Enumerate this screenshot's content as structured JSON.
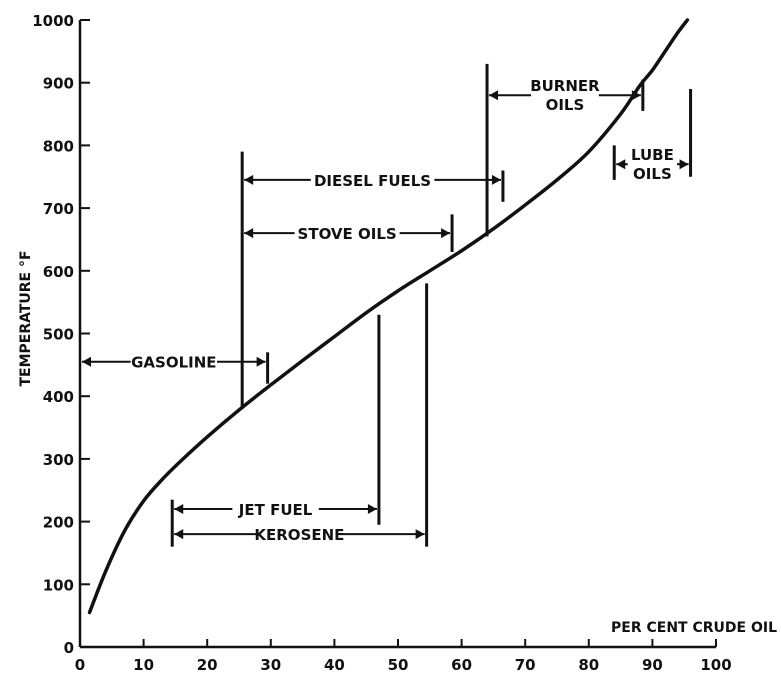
{
  "chart_data": {
    "type": "line",
    "title": "",
    "xlabel": "PER CENT CRUDE OIL",
    "ylabel": "TEMPERATURE °F",
    "xlim": [
      0,
      100
    ],
    "ylim": [
      0,
      1000
    ],
    "x_ticks": [
      "0",
      "10",
      "20",
      "30",
      "40",
      "50",
      "60",
      "70",
      "80",
      "90",
      "100"
    ],
    "y_ticks": [
      "0",
      "100",
      "200",
      "300",
      "400",
      "500",
      "600",
      "700",
      "800",
      "900",
      "1000"
    ],
    "grid": false,
    "legend": "none",
    "series": [
      {
        "x": [
          1.5,
          4,
          7,
          10,
          13,
          16,
          20,
          25,
          30,
          35,
          40,
          45,
          50,
          55,
          60,
          65,
          70,
          75,
          80,
          85,
          88,
          90,
          92,
          94,
          95.5
        ],
        "y": [
          55,
          120,
          185,
          233,
          268,
          298,
          335,
          378,
          418,
          457,
          495,
          533,
          568,
          600,
          632,
          667,
          705,
          745,
          790,
          850,
          895,
          920,
          950,
          980,
          1000
        ]
      }
    ],
    "ranges": [
      {
        "label": "GASOLINE",
        "x_start": 0,
        "x_end": 29.5,
        "y": 455
      },
      {
        "label": "JET FUEL",
        "x_start": 14.5,
        "x_end": 47,
        "y": 220
      },
      {
        "label": "KEROSENE",
        "x_start": 14.5,
        "x_end": 54.5,
        "y": 180
      },
      {
        "label": "DIESEL FUELS",
        "x_start": 25.5,
        "x_end": 66.5,
        "y": 745
      },
      {
        "label": "STOVE OILS",
        "x_start": 25.5,
        "x_end": 58.5,
        "y": 660
      },
      {
        "label": "BURNER OILS",
        "x_start": 64,
        "x_end": 88.5,
        "y": 880
      },
      {
        "label": "LUBE OILS",
        "x_start": 84,
        "x_end": 96,
        "y": 770
      }
    ]
  }
}
